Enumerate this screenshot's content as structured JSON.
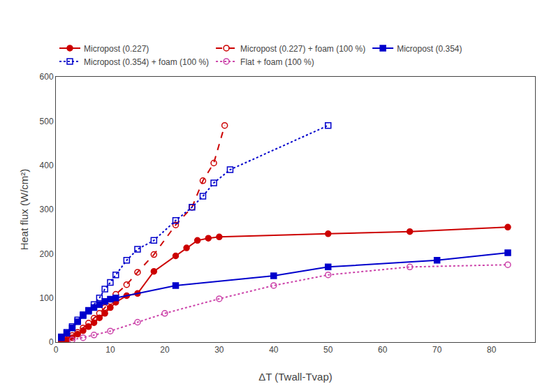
{
  "chart_data": {
    "type": "line",
    "xlabel": "ΔT (Twall-Tvap)",
    "ylabel": "Heat flux (W/cm²)",
    "xlim": [
      0,
      88
    ],
    "ylim": [
      0,
      600
    ],
    "xticks": [
      0,
      10,
      20,
      30,
      40,
      50,
      60,
      70,
      80
    ],
    "yticks": [
      0,
      100,
      200,
      300,
      400,
      500,
      600
    ],
    "grid": false,
    "legend": "upper left",
    "series": [
      {
        "name": "Micropost (0.227)",
        "color": "#cc0000",
        "line_style": "solid",
        "marker": "circle",
        "x": [
          1,
          2,
          3,
          4,
          5,
          6,
          7,
          8,
          9,
          10,
          11,
          13,
          15,
          18,
          22,
          24,
          26,
          28,
          30,
          50,
          65,
          83
        ],
        "values": [
          2,
          5,
          10,
          18,
          26,
          35,
          44,
          55,
          65,
          78,
          90,
          105,
          110,
          160,
          195,
          213,
          230,
          235,
          238,
          245,
          250,
          260
        ]
      },
      {
        "name": "Micropost (0.227) + foam (100 %)",
        "color": "#cc0000",
        "line_style": "dashed",
        "marker": "circle-open",
        "x": [
          1,
          2,
          3,
          4,
          5,
          6,
          7,
          8,
          9,
          10,
          11,
          13,
          15,
          18,
          22,
          25,
          27,
          29,
          31
        ],
        "values": [
          3,
          8,
          15,
          22,
          32,
          43,
          54,
          65,
          78,
          92,
          108,
          130,
          158,
          198,
          265,
          305,
          365,
          405,
          490
        ]
      },
      {
        "name": "Micropost (0.354)",
        "color": "#0000cc",
        "line_style": "solid",
        "marker": "square",
        "x": [
          1,
          2,
          3,
          4,
          5,
          6,
          7,
          8,
          9,
          10,
          11,
          22,
          40,
          50,
          70,
          83
        ],
        "values": [
          10,
          20,
          32,
          46,
          60,
          70,
          78,
          85,
          92,
          97,
          100,
          128,
          150,
          170,
          185,
          202
        ]
      },
      {
        "name": "Micropost (0.354) + foam (100 %)",
        "color": "#0000cc",
        "line_style": "dotted",
        "marker": "square-open",
        "x": [
          1,
          2,
          3,
          4,
          5,
          6,
          7,
          8,
          9,
          10,
          11,
          13,
          15,
          18,
          22,
          25,
          27,
          29,
          32,
          50
        ],
        "values": [
          12,
          22,
          35,
          50,
          62,
          72,
          85,
          100,
          120,
          135,
          152,
          185,
          210,
          230,
          275,
          305,
          330,
          360,
          390,
          490
        ]
      },
      {
        "name": "Flat + foam (100 %)",
        "color": "#cc44aa",
        "line_style": "dotted",
        "marker": "circle-open",
        "x": [
          3,
          5,
          7,
          10,
          15,
          20,
          30,
          40,
          50,
          65,
          83
        ],
        "values": [
          5,
          10,
          16,
          25,
          45,
          65,
          98,
          128,
          152,
          170,
          175
        ]
      }
    ]
  }
}
